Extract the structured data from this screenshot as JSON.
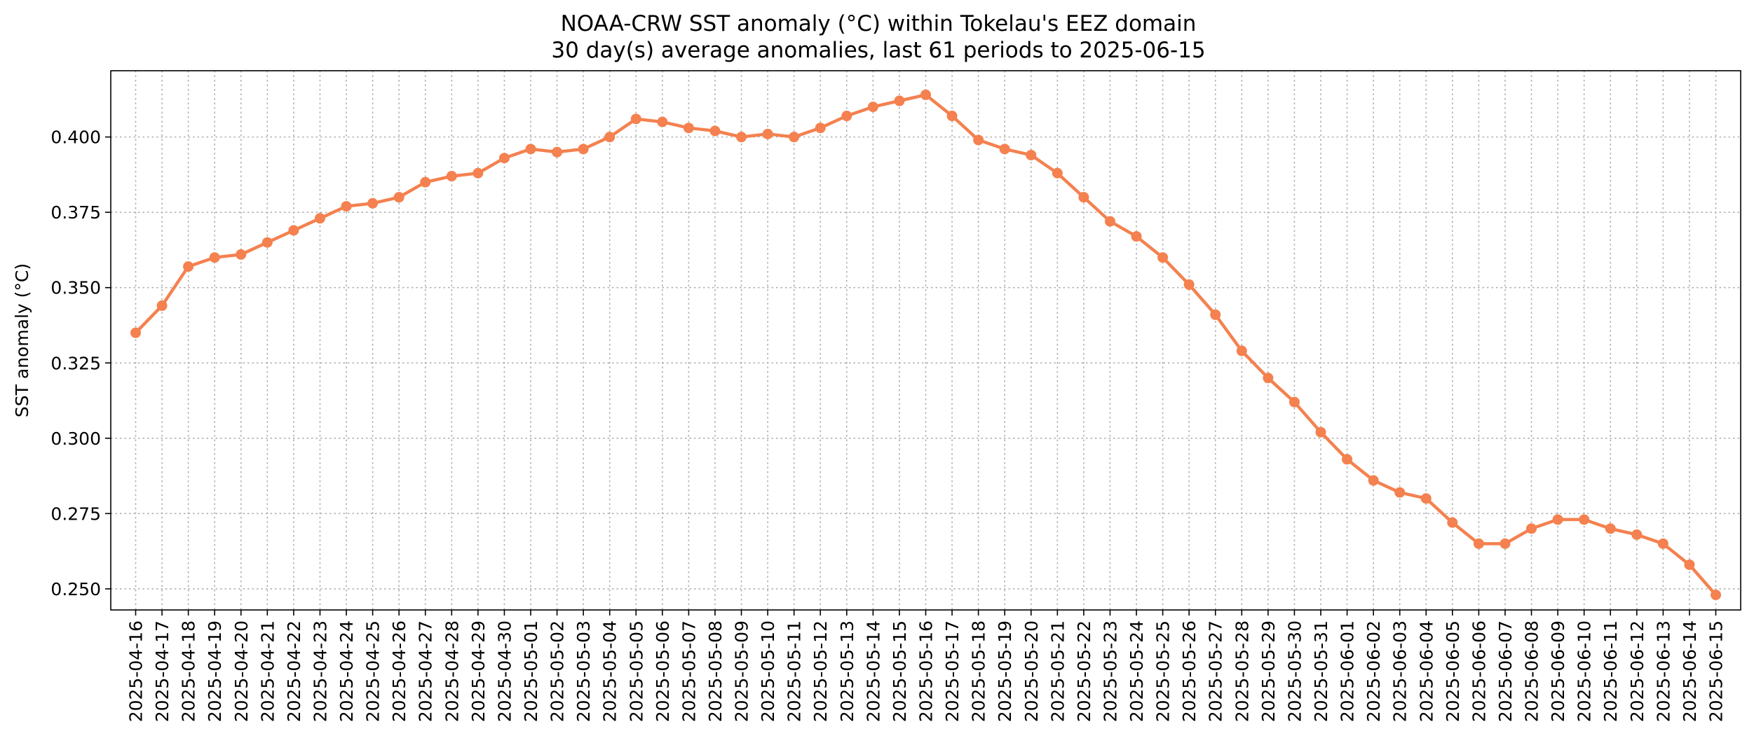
{
  "chart_data": {
    "type": "line",
    "title": "NOAA-CRW SST anomaly (°C) within Tokelau's EEZ domain",
    "subtitle": "30 day(s) average anomalies, last 61 periods to 2025-06-15",
    "xlabel": "",
    "ylabel": "SST anomaly (°C)",
    "ylim": [
      0.243,
      0.422
    ],
    "yticks": [
      "0.250",
      "0.275",
      "0.300",
      "0.325",
      "0.350",
      "0.375",
      "0.400"
    ],
    "grid": true,
    "line_color": "#f4814f",
    "x": [
      "2025-04-16",
      "2025-04-17",
      "2025-04-18",
      "2025-04-19",
      "2025-04-20",
      "2025-04-21",
      "2025-04-22",
      "2025-04-23",
      "2025-04-24",
      "2025-04-25",
      "2025-04-26",
      "2025-04-27",
      "2025-04-28",
      "2025-04-29",
      "2025-04-30",
      "2025-05-01",
      "2025-05-02",
      "2025-05-03",
      "2025-05-04",
      "2025-05-05",
      "2025-05-06",
      "2025-05-07",
      "2025-05-08",
      "2025-05-09",
      "2025-05-10",
      "2025-05-11",
      "2025-05-12",
      "2025-05-13",
      "2025-05-14",
      "2025-05-15",
      "2025-05-16",
      "2025-05-17",
      "2025-05-18",
      "2025-05-19",
      "2025-05-20",
      "2025-05-21",
      "2025-05-22",
      "2025-05-23",
      "2025-05-24",
      "2025-05-25",
      "2025-05-26",
      "2025-05-27",
      "2025-05-28",
      "2025-05-29",
      "2025-05-30",
      "2025-05-31",
      "2025-06-01",
      "2025-06-02",
      "2025-06-03",
      "2025-06-04",
      "2025-06-05",
      "2025-06-06",
      "2025-06-07",
      "2025-06-08",
      "2025-06-09",
      "2025-06-10",
      "2025-06-11",
      "2025-06-12",
      "2025-06-13",
      "2025-06-14",
      "2025-06-15"
    ],
    "series": [
      {
        "values": [
          0.335,
          0.344,
          0.357,
          0.36,
          0.361,
          0.365,
          0.369,
          0.373,
          0.377,
          0.378,
          0.38,
          0.385,
          0.387,
          0.388,
          0.393,
          0.396,
          0.395,
          0.396,
          0.4,
          0.406,
          0.405,
          0.403,
          0.402,
          0.4,
          0.401,
          0.4,
          0.403,
          0.407,
          0.41,
          0.412,
          0.414,
          0.407,
          0.399,
          0.396,
          0.394,
          0.388,
          0.38,
          0.372,
          0.367,
          0.36,
          0.351,
          0.341,
          0.329,
          0.32,
          0.312,
          0.302,
          0.293,
          0.286,
          0.282,
          0.28,
          0.272,
          0.265,
          0.265,
          0.27,
          0.273,
          0.273,
          0.27,
          0.268,
          0.265,
          0.258,
          0.248
        ]
      }
    ]
  }
}
